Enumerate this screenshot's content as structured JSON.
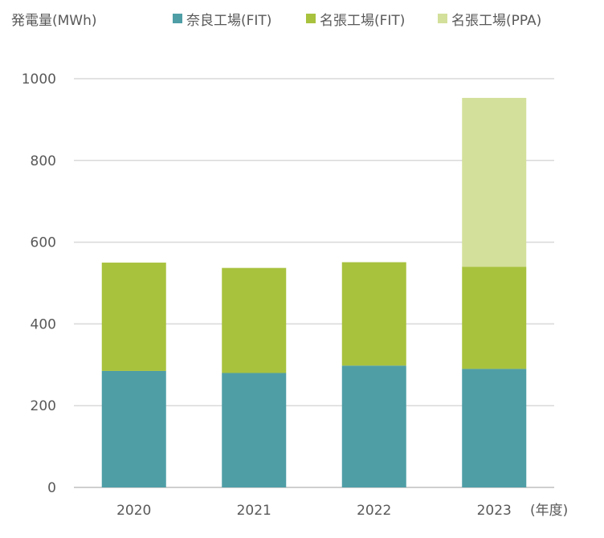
{
  "chart_data": {
    "type": "bar",
    "stacked": true,
    "ylabel": "発電量(MWh)",
    "xlabel": "(年度)",
    "categories": [
      "2020",
      "2021",
      "2022",
      "2023"
    ],
    "ylim": [
      0,
      1000
    ],
    "yticks": [
      0,
      200,
      400,
      600,
      800,
      1000
    ],
    "grid": true,
    "legend_position": "top",
    "series": [
      {
        "name": "奈良工場(FIT)",
        "color": "#4f9ea6",
        "values": [
          285,
          280,
          298,
          290
        ]
      },
      {
        "name": "名張工場(FIT)",
        "color": "#a8c23e",
        "values": [
          265,
          257,
          253,
          250
        ]
      },
      {
        "name": "名張工場(PPA)",
        "color": "#d3e09b",
        "values": [
          0,
          0,
          0,
          413
        ]
      }
    ]
  }
}
